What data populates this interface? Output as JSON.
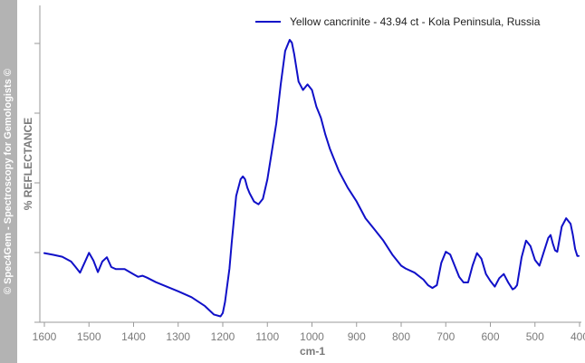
{
  "watermark": "© Spec4Gem - Spectroscopy for Gemologists ©",
  "chart_data": {
    "type": "line",
    "xlabel": "cm-1",
    "ylabel": "% REFLECTANCE",
    "xlim": [
      1600,
      400
    ],
    "ylim": [
      0,
      100
    ],
    "x_reversed": true,
    "x_ticks": [
      1600,
      1500,
      1400,
      1300,
      1200,
      1100,
      1000,
      900,
      800,
      700,
      600,
      500,
      400
    ],
    "y_ticks_labeled": false,
    "y_tick_values": [
      0,
      25,
      50,
      75,
      100
    ],
    "grid": false,
    "legend_position": "top-right",
    "colors": {
      "series": "#1010c8",
      "axis": "#9a9a9a",
      "text": "#7a7a7a"
    },
    "series": [
      {
        "name": "Yellow cancrinite - 43.94 ct - Kola Peninsula, Russia",
        "x": [
          1600,
          1580,
          1560,
          1540,
          1530,
          1520,
          1510,
          1500,
          1490,
          1480,
          1470,
          1460,
          1450,
          1440,
          1420,
          1400,
          1390,
          1380,
          1370,
          1350,
          1300,
          1270,
          1240,
          1220,
          1205,
          1200,
          1195,
          1185,
          1180,
          1170,
          1160,
          1155,
          1150,
          1145,
          1140,
          1130,
          1120,
          1110,
          1100,
          1090,
          1080,
          1070,
          1060,
          1050,
          1045,
          1040,
          1030,
          1020,
          1010,
          1000,
          990,
          980,
          970,
          960,
          950,
          940,
          920,
          900,
          880,
          860,
          840,
          820,
          800,
          790,
          770,
          750,
          740,
          730,
          720,
          710,
          700,
          690,
          680,
          670,
          660,
          650,
          640,
          630,
          620,
          610,
          600,
          590,
          580,
          570,
          560,
          550,
          545,
          540,
          530,
          520,
          510,
          500,
          490,
          480,
          470,
          465,
          460,
          455,
          450,
          440,
          430,
          420,
          415,
          410,
          405,
          402
        ],
        "y": [
          23.5,
          22.9,
          22.2,
          20.5,
          18.5,
          16.5,
          20.0,
          23.6,
          20.8,
          16.7,
          20.5,
          22.0,
          18.5,
          17.8,
          17.8,
          15.9,
          15.0,
          15.4,
          14.7,
          13.1,
          9.8,
          7.7,
          4.5,
          1.5,
          0.8,
          2.0,
          6.0,
          18.0,
          27.0,
          44.0,
          50.0,
          51.0,
          50.0,
          47.0,
          45.0,
          42.0,
          41.0,
          43.0,
          50.0,
          60.0,
          70.0,
          84.0,
          96.0,
          100.0,
          99.0,
          95.0,
          85.0,
          82.0,
          84.0,
          82.0,
          76.0,
          72.0,
          66.0,
          61.0,
          57.0,
          53.0,
          47.0,
          42.0,
          36.0,
          32.0,
          28.0,
          23.0,
          19.0,
          18.0,
          16.5,
          14.0,
          12.0,
          11.0,
          12.0,
          20.0,
          24.0,
          23.0,
          19.0,
          15.0,
          13.0,
          13.0,
          19.0,
          23.5,
          21.5,
          16.0,
          13.5,
          11.5,
          14.5,
          16.0,
          13.0,
          10.5,
          11.0,
          12.0,
          22.0,
          28.0,
          26.0,
          21.0,
          19.0,
          24.0,
          29.0,
          30.0,
          27.0,
          24.5,
          24.0,
          33.0,
          36.0,
          34.0,
          30.0,
          25.0,
          22.5,
          22.5
        ]
      }
    ]
  }
}
